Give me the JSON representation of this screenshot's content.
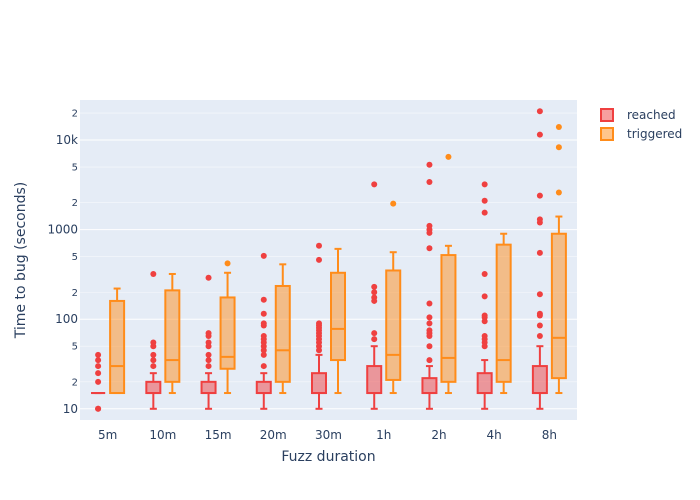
{
  "chart_data": {
    "type": "box",
    "title": "",
    "xlabel": "Fuzz duration",
    "ylabel": "Time to bug (seconds)",
    "yscale": "log",
    "ylim": [
      7.5,
      28000
    ],
    "grid": true,
    "legend_position": "top-right",
    "categories": [
      "5m",
      "10m",
      "15m",
      "20m",
      "30m",
      "1h",
      "2h",
      "4h",
      "8h"
    ],
    "y_major_ticks": [
      10,
      100,
      1000,
      10000
    ],
    "y_major_tick_labels": [
      "10",
      "100",
      "1000",
      "10k"
    ],
    "y_minor_ticks": [
      20,
      50,
      200,
      500,
      2000,
      5000,
      20000
    ],
    "y_minor_tick_labels": [
      "2",
      "5",
      "2",
      "5",
      "2",
      "5",
      "2"
    ],
    "series": [
      {
        "name": "reached",
        "color": "#EF4040",
        "fill": "rgba(239,64,64,0.5)",
        "boxes": [
          {
            "category": "5m",
            "min": 15,
            "q1": 15,
            "median": 15,
            "q3": 15,
            "max": 15,
            "outliers": [
              10,
              10,
              20,
              25,
              30,
              35,
              40
            ]
          },
          {
            "category": "10m",
            "min": 10,
            "q1": 15,
            "median": 15,
            "q3": 20,
            "max": 25,
            "outliers": [
              30,
              35,
              40,
              50,
              55,
              320
            ]
          },
          {
            "category": "15m",
            "min": 10,
            "q1": 15,
            "median": 15,
            "q3": 20,
            "max": 25,
            "outliers": [
              30,
              35,
              40,
              50,
              55,
              65,
              70,
              290
            ]
          },
          {
            "category": "20m",
            "min": 10,
            "q1": 15,
            "median": 15,
            "q3": 20,
            "max": 25,
            "outliers": [
              30,
              40,
              45,
              50,
              55,
              60,
              65,
              85,
              90,
              115,
              165,
              510
            ]
          },
          {
            "category": "30m",
            "min": 10,
            "q1": 15,
            "median": 15,
            "q3": 25,
            "max": 40,
            "outliers": [
              45,
              50,
              55,
              60,
              65,
              70,
              75,
              80,
              85,
              90,
              460,
              660
            ]
          },
          {
            "category": "1h",
            "min": 10,
            "q1": 15,
            "median": 15,
            "q3": 30,
            "max": 50,
            "outliers": [
              60,
              70,
              160,
              175,
              200,
              230,
              3200
            ]
          },
          {
            "category": "2h",
            "min": 10,
            "q1": 15,
            "median": 15,
            "q3": 22,
            "max": 30,
            "outliers": [
              35,
              50,
              65,
              70,
              75,
              90,
              105,
              150,
              620,
              920,
              1000,
              1100,
              3400,
              5300
            ]
          },
          {
            "category": "4h",
            "min": 10,
            "q1": 15,
            "median": 15,
            "q3": 25,
            "max": 35,
            "outliers": [
              50,
              55,
              60,
              65,
              95,
              105,
              110,
              180,
              320,
              1550,
              2100,
              3200
            ]
          },
          {
            "category": "8h",
            "min": 10,
            "q1": 15,
            "median": 15,
            "q3": 30,
            "max": 50,
            "outliers": [
              65,
              85,
              110,
              115,
              190,
              550,
              1200,
              1300,
              2400,
              11500,
              21000
            ]
          }
        ]
      },
      {
        "name": "triggered",
        "color": "#FF8C1A",
        "fill": "rgba(255,140,26,0.5)",
        "boxes": [
          {
            "category": "5m",
            "min": 15,
            "q1": 15,
            "median": 30,
            "q3": 160,
            "max": 220,
            "outliers": []
          },
          {
            "category": "10m",
            "min": 15,
            "q1": 20,
            "median": 35,
            "q3": 210,
            "max": 320,
            "outliers": []
          },
          {
            "category": "15m",
            "min": 15,
            "q1": 28,
            "median": 38,
            "q3": 175,
            "max": 330,
            "outliers": [
              420
            ]
          },
          {
            "category": "20m",
            "min": 15,
            "q1": 20,
            "median": 45,
            "q3": 235,
            "max": 410,
            "outliers": []
          },
          {
            "category": "30m",
            "min": 15,
            "q1": 35,
            "median": 78,
            "q3": 330,
            "max": 610,
            "outliers": []
          },
          {
            "category": "1h",
            "min": 15,
            "q1": 21,
            "median": 40,
            "q3": 350,
            "max": 560,
            "outliers": [
              1950
            ]
          },
          {
            "category": "2h",
            "min": 15,
            "q1": 20,
            "median": 37,
            "q3": 520,
            "max": 660,
            "outliers": [
              6500
            ]
          },
          {
            "category": "4h",
            "min": 15,
            "q1": 20,
            "median": 35,
            "q3": 680,
            "max": 900,
            "outliers": []
          },
          {
            "category": "8h",
            "min": 15,
            "q1": 22,
            "median": 62,
            "q3": 900,
            "max": 1400,
            "outliers": [
              2600,
              8300,
              14000
            ]
          }
        ]
      }
    ]
  }
}
